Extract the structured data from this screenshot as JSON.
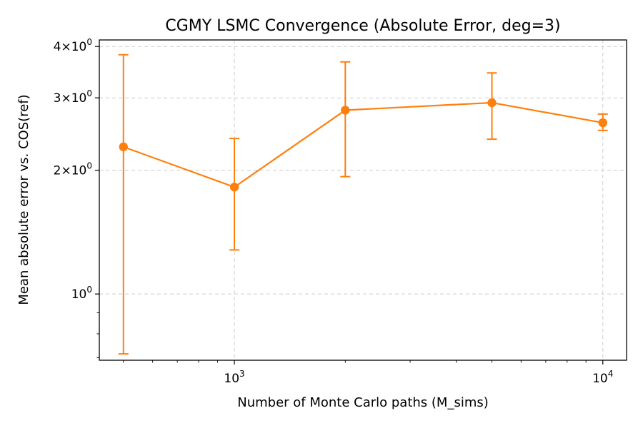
{
  "chart_data": {
    "type": "line",
    "title": "CGMY LSMC Convergence (Absolute Error, deg=3)",
    "xlabel": "Number of Monte Carlo paths (M_sims)",
    "ylabel": "Mean absolute error vs. COS(ref)",
    "xscale": "log",
    "yscale": "log",
    "xlim": [
      430,
      11600
    ],
    "ylim": [
      0.69,
      4.15
    ],
    "grid": true,
    "x_ticks": [
      {
        "value": 1000,
        "base": "10",
        "exp": "3"
      },
      {
        "value": 10000,
        "base": "10",
        "exp": "4"
      }
    ],
    "y_ticks": [
      {
        "value": 1,
        "base": "10",
        "exp": "0",
        "coef": ""
      },
      {
        "value": 2,
        "base": "10",
        "exp": "0",
        "coef": "2×"
      },
      {
        "value": 3,
        "base": "10",
        "exp": "0",
        "coef": "3×"
      },
      {
        "value": 4,
        "base": "10",
        "exp": "0",
        "coef": "4×"
      }
    ],
    "series": [
      {
        "color": "#ff7f0e",
        "x": [
          500,
          1000,
          2000,
          5000,
          10000
        ],
        "y": [
          2.28,
          1.82,
          2.8,
          2.92,
          2.61
        ],
        "err_low": [
          0.715,
          1.28,
          1.93,
          2.38,
          2.5
        ],
        "err_high": [
          3.82,
          2.39,
          3.67,
          3.45,
          2.74
        ]
      }
    ]
  }
}
